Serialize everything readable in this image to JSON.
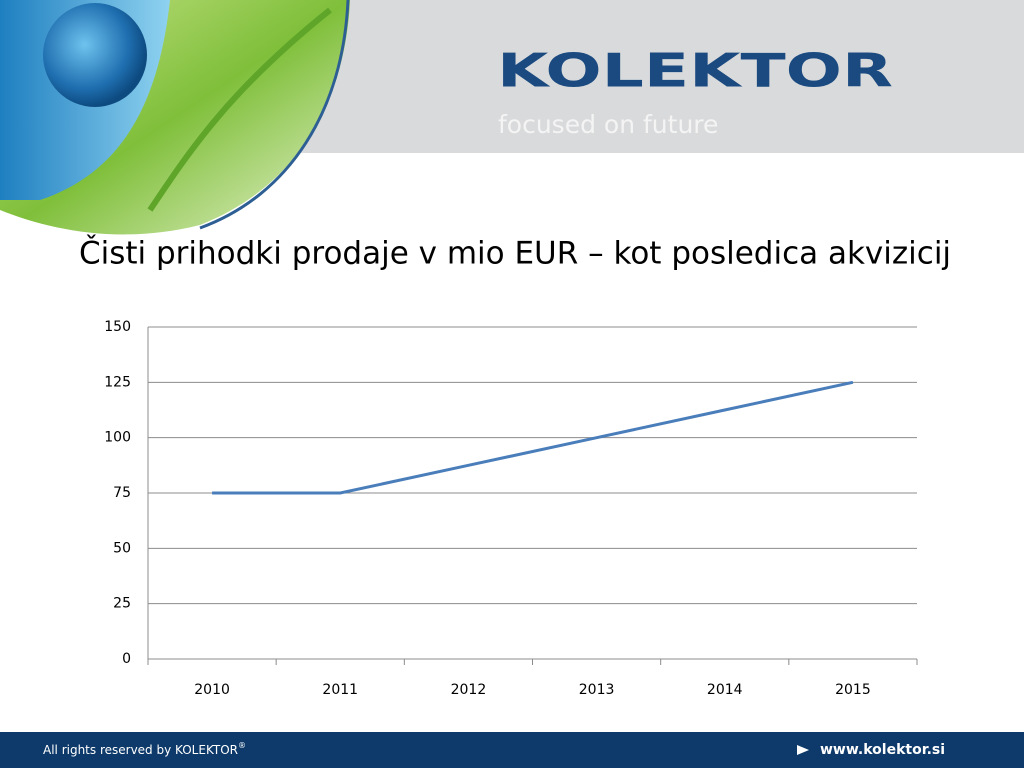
{
  "header": {
    "logo": "KOLEKTOR",
    "tagline": "focused on future"
  },
  "chart_data": {
    "type": "line",
    "title": "Čisti prihodki prodaje v mio EUR – kot posledica akvizicij",
    "categories": [
      "2010",
      "2011",
      "2012",
      "2013",
      "2014",
      "2015"
    ],
    "series": [
      {
        "name": "Čisti prihodki prodaje",
        "color": "#4a7ebb",
        "values": [
          75,
          75,
          87.5,
          100,
          112.5,
          125
        ]
      }
    ],
    "ylim": [
      0,
      150
    ],
    "yticks": [
      0,
      25,
      50,
      75,
      100,
      125,
      150
    ],
    "grid": true
  },
  "footer": {
    "copyright": "All rights reserved by KOLEKTOR",
    "mark": "®",
    "url": "www.kolektor.si"
  }
}
